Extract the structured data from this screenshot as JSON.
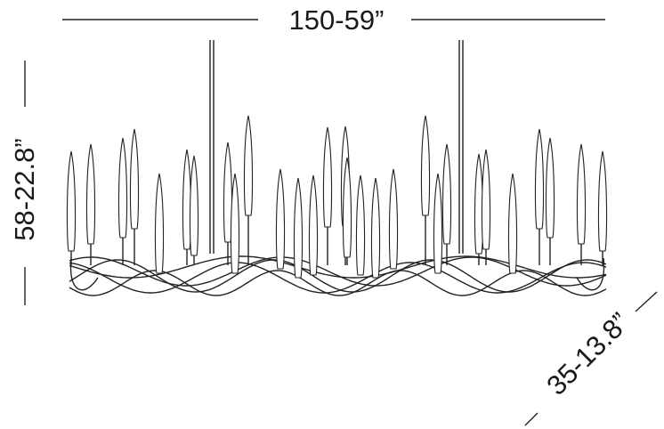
{
  "dimensions": {
    "width": "150-59”",
    "height": "58-22.8”",
    "depth": "35-13.8”"
  }
}
